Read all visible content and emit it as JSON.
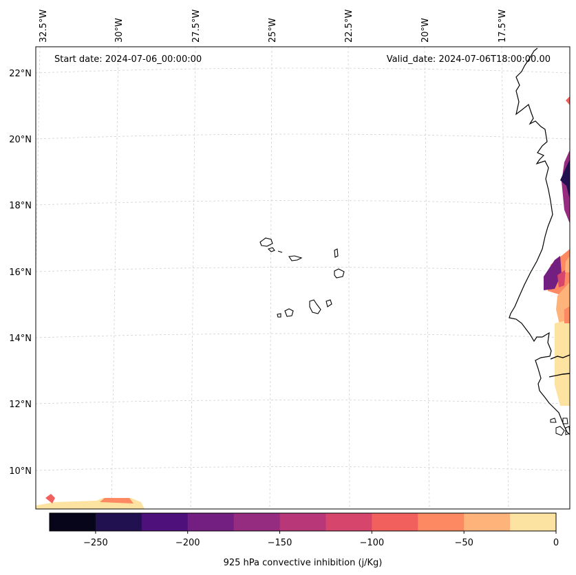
{
  "map": {
    "start_label": "Start date: 2024-07-06_00:00:00",
    "valid_label": "Valid_date: 2024-07-06T18:00:00.00",
    "lon_labels": [
      "32.5°W",
      "30°W",
      "27.5°W",
      "25°W",
      "22.5°W",
      "20°W",
      "17.5°W"
    ],
    "lat_labels": [
      "22°N",
      "20°N",
      "18°N",
      "16°N",
      "14°N",
      "12°N",
      "10°N"
    ]
  },
  "colorbar": {
    "title": "925 hPa convective inhibition (j/Kg)",
    "tick_labels": [
      "−250",
      "−200",
      "−150",
      "−100",
      "−50",
      "0"
    ],
    "levels": [
      -275,
      -250,
      -225,
      -200,
      -175,
      -150,
      -125,
      -100,
      -75,
      -50,
      -25,
      0
    ],
    "colors": [
      "#06051a",
      "#221150",
      "#4e117b",
      "#721f81",
      "#952c80",
      "#b73779",
      "#d6456c",
      "#f1605d",
      "#fc8961",
      "#feb37b",
      "#fde3a2"
    ]
  },
  "style": {
    "coast_color": "#000000",
    "grid_color": "#d0d0d0"
  }
}
